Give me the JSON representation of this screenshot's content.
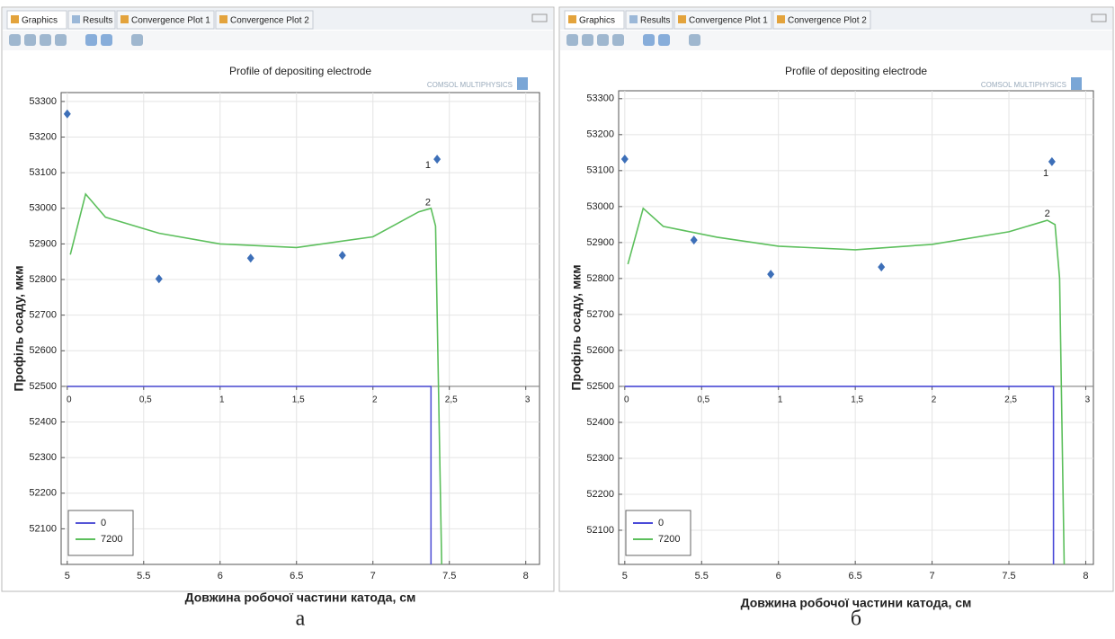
{
  "panels": [
    {
      "tabs": [
        "Graphics",
        "Results",
        "Convergence Plot 1",
        "Convergence Plot 2"
      ],
      "logo": "COMSOL MULTIPHYSICS",
      "caption": "а"
    },
    {
      "tabs": [
        "Graphics",
        "Results",
        "Convergence Plot 1",
        "Convergence Plot 2"
      ],
      "logo": "COMSOL MULTIPHYSICS",
      "caption": "б"
    }
  ],
  "chart_data": [
    {
      "type": "line",
      "title": "Profile of depositing electrode",
      "x_label": "Довжина робочої частини катода, см",
      "y_label": "Профіль осаду, мкм",
      "xlim": [
        4.96,
        8.09
      ],
      "xticks": [
        5,
        5.5,
        6,
        6.5,
        7,
        7.5,
        8
      ],
      "x2lim": [
        -0.04,
        3.09
      ],
      "x2ticks": [
        0,
        {
          "value": 0.5,
          "label": "0,5"
        },
        1,
        {
          "value": 1.5,
          "label": "1,5"
        },
        2,
        {
          "value": 2.5,
          "label": "2,5"
        },
        3
      ],
      "x2_axis_at": 52500,
      "ylim": [
        52000,
        53325
      ],
      "yticks": [
        52100,
        52200,
        52300,
        52400,
        52500,
        52600,
        52700,
        52800,
        52900,
        53000,
        53100,
        53200,
        53300
      ],
      "grid": true,
      "legend": "lower left",
      "series": [
        {
          "name": "0",
          "color": "#5555d6",
          "x": [
            5,
            7.38,
            7.38
          ],
          "values": [
            52500,
            52500,
            52000
          ]
        },
        {
          "name": "7200",
          "color": "#5cbf5c",
          "x": [
            5.02,
            5.12,
            5.25,
            5.6,
            6.0,
            6.5,
            7.0,
            7.3,
            7.38,
            7.41,
            7.45
          ],
          "values": [
            52870,
            53040,
            52975,
            52930,
            52900,
            52890,
            52920,
            52990,
            53000,
            52950,
            52000
          ]
        }
      ],
      "points": {
        "color": "#3d6fb8",
        "x": [
          5.0,
          5.6,
          6.2,
          6.8,
          7.42
        ],
        "values": [
          53265,
          52802,
          52860,
          52868,
          53138
        ]
      },
      "annotations": [
        {
          "text": "1",
          "x": 7.36,
          "y": 53120
        },
        {
          "text": "2",
          "x": 7.36,
          "y": 53015
        }
      ]
    },
    {
      "type": "line",
      "title": "Profile of depositing electrode",
      "x_label": "Довжина робочої частини катода, см",
      "y_label": "Профіль осаду, мкм",
      "xlim": [
        4.96,
        8.05
      ],
      "xticks": [
        5,
        5.5,
        6,
        6.5,
        7,
        7.5,
        8
      ],
      "x2lim": [
        -0.04,
        3.05
      ],
      "x2ticks": [
        0,
        {
          "value": 0.5,
          "label": "0,5"
        },
        1,
        {
          "value": 1.5,
          "label": "1,5"
        },
        2,
        {
          "value": 2.5,
          "label": "2,5"
        },
        3
      ],
      "x2_axis_at": 52500,
      "ylim": [
        52005,
        53322
      ],
      "yticks": [
        52100,
        52200,
        52300,
        52400,
        52500,
        52600,
        52700,
        52800,
        52900,
        53000,
        53100,
        53200,
        53300
      ],
      "grid": true,
      "legend": "lower left",
      "series": [
        {
          "name": "0",
          "color": "#4a4ad8",
          "x": [
            5,
            7.79,
            7.79
          ],
          "values": [
            52500,
            52500,
            52005
          ]
        },
        {
          "name": "7200",
          "color": "#5cbf5c",
          "x": [
            5.02,
            5.12,
            5.25,
            5.6,
            6.0,
            6.5,
            7.0,
            7.5,
            7.75,
            7.8,
            7.83,
            7.86
          ],
          "values": [
            52840,
            52995,
            52945,
            52915,
            52890,
            52880,
            52895,
            52930,
            52962,
            52950,
            52800,
            52005
          ]
        }
      ],
      "points": {
        "color": "#3d6fb8",
        "x": [
          5.0,
          5.45,
          5.95,
          6.67,
          7.78
        ],
        "values": [
          53132,
          52907,
          52812,
          52832,
          53125
        ]
      },
      "annotations": [
        {
          "text": "1",
          "x": 7.74,
          "y": 53092
        },
        {
          "text": "2",
          "x": 7.75,
          "y": 52980
        }
      ]
    }
  ]
}
